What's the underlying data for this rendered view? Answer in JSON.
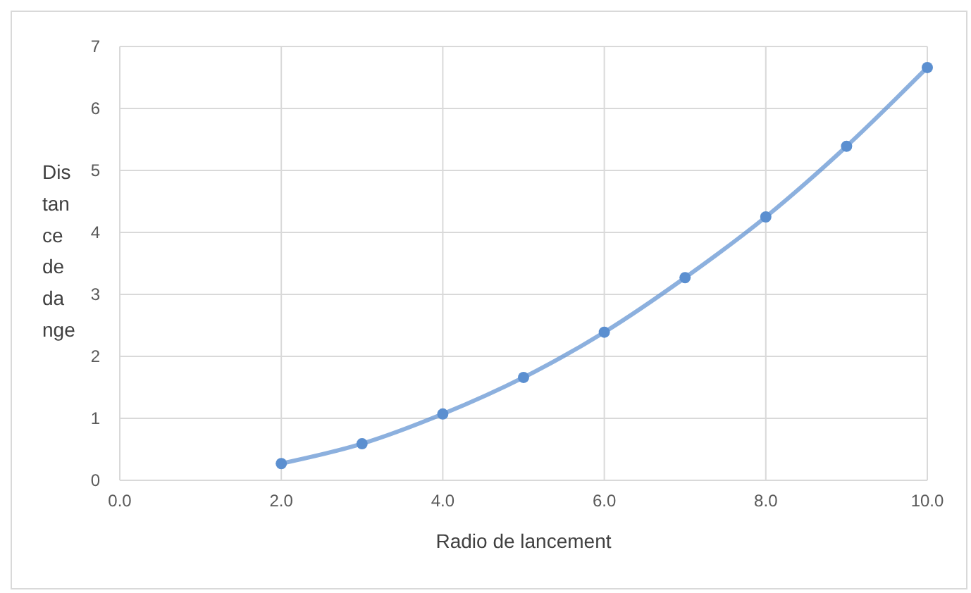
{
  "chart_data": {
    "type": "line",
    "xlabel": "Radio de lancement",
    "ylabel": "Dis tan ce de da nge",
    "x": [
      2,
      3,
      4,
      5,
      6,
      7,
      8,
      9,
      10
    ],
    "series": [
      {
        "color": "#5b8fd0",
        "values": [
          0.27,
          0.59,
          1.07,
          1.66,
          2.39,
          3.27,
          4.25,
          5.39,
          6.66
        ]
      }
    ],
    "xlim": [
      0,
      10
    ],
    "xticks": [
      {
        "value": 0,
        "label": "0.0"
      },
      {
        "value": 2,
        "label": "2.0"
      },
      {
        "value": 4,
        "label": "4.0"
      },
      {
        "value": 6,
        "label": "6.0"
      },
      {
        "value": 8,
        "label": "8.0"
      },
      {
        "value": 10,
        "label": "10.0"
      }
    ],
    "ylim": [
      0,
      7
    ],
    "yticks": [
      0,
      1,
      2,
      3,
      4,
      5,
      6,
      7
    ],
    "grid": true,
    "marker": "circle",
    "line_style": "solid"
  }
}
